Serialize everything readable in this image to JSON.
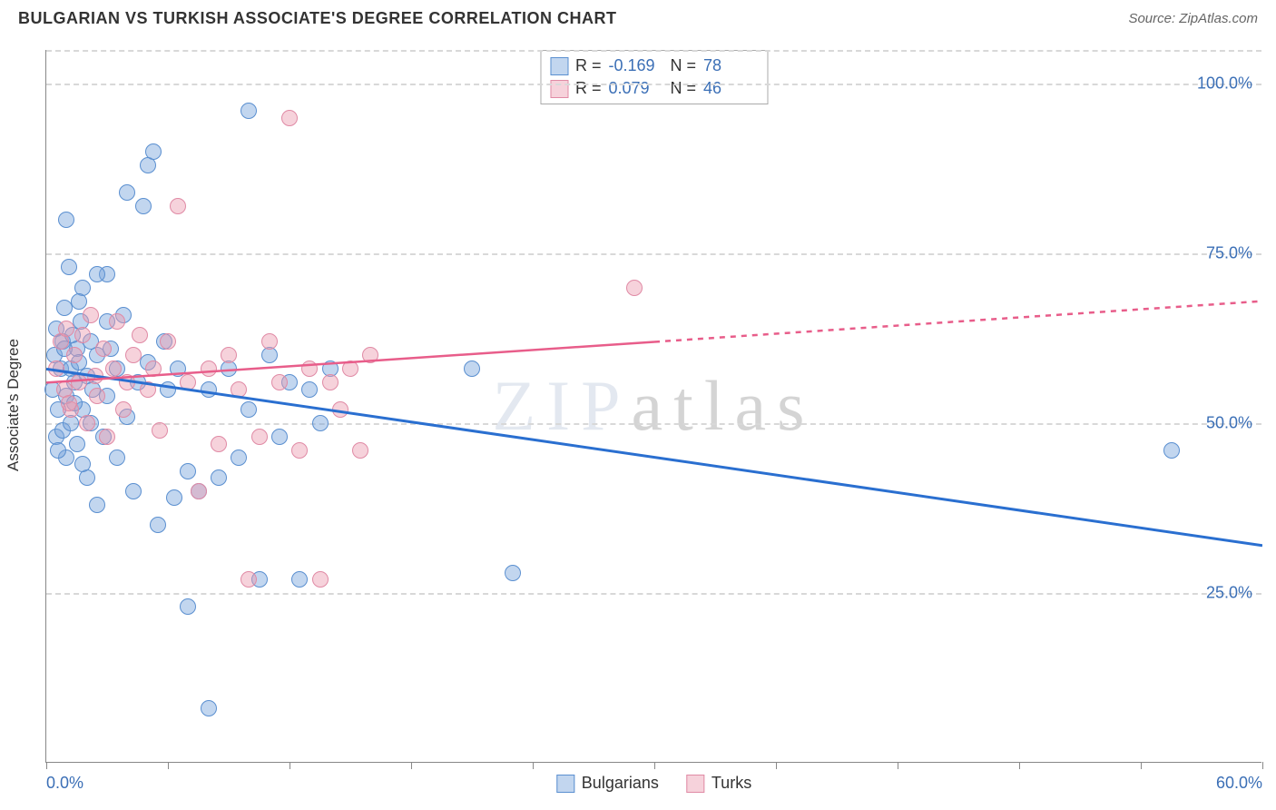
{
  "header": {
    "title": "BULGARIAN VS TURKISH ASSOCIATE'S DEGREE CORRELATION CHART",
    "source": "Source: ZipAtlas.com"
  },
  "watermark": {
    "light": "ZIP",
    "dark": "atlas"
  },
  "chart": {
    "type": "scatter",
    "y_axis_label": "Associate's Degree",
    "xlim": [
      0,
      60
    ],
    "ylim": [
      0,
      105
    ],
    "x_ticks": [
      0,
      6,
      12,
      18,
      24,
      30,
      36,
      42,
      48,
      54,
      60
    ],
    "x_tick_labels": {
      "0": "0.0%",
      "60": "60.0%"
    },
    "y_gridlines": [
      25,
      50,
      75,
      100,
      105
    ],
    "y_tick_labels": {
      "25": "25.0%",
      "50": "50.0%",
      "75": "75.0%",
      "100": "100.0%"
    },
    "background_color": "#ffffff",
    "grid_color": "#d8d8d8",
    "axis_color": "#888888",
    "tick_label_color": "#3b6fb6",
    "point_radius": 9,
    "series": [
      {
        "name": "Bulgarians",
        "fill": "rgba(120,165,220,0.45)",
        "stroke": "#5a8fd0",
        "line_color": "#2a6fd0",
        "line_width": 3,
        "r_value": "-0.169",
        "n_value": "78",
        "trend": {
          "x1": 0,
          "y1": 58,
          "x2": 60,
          "y2": 32,
          "dash_from_x": null
        },
        "points": [
          [
            0.3,
            55
          ],
          [
            0.4,
            60
          ],
          [
            0.5,
            48
          ],
          [
            0.5,
            64
          ],
          [
            0.6,
            52
          ],
          [
            0.7,
            58
          ],
          [
            0.8,
            62
          ],
          [
            0.8,
            49
          ],
          [
            0.9,
            67
          ],
          [
            1.0,
            54
          ],
          [
            1.0,
            45
          ],
          [
            1.1,
            73
          ],
          [
            1.2,
            58
          ],
          [
            1.2,
            50
          ],
          [
            1.3,
            63
          ],
          [
            1.4,
            56
          ],
          [
            1.5,
            61
          ],
          [
            1.5,
            47
          ],
          [
            1.6,
            59
          ],
          [
            1.7,
            65
          ],
          [
            1.8,
            52
          ],
          [
            1.8,
            70
          ],
          [
            2.0,
            57
          ],
          [
            2.0,
            42
          ],
          [
            2.2,
            62
          ],
          [
            2.3,
            55
          ],
          [
            2.5,
            38
          ],
          [
            2.5,
            60
          ],
          [
            2.8,
            48
          ],
          [
            3.0,
            72
          ],
          [
            3.0,
            54
          ],
          [
            3.2,
            61
          ],
          [
            3.5,
            58
          ],
          [
            3.5,
            45
          ],
          [
            3.8,
            66
          ],
          [
            4.0,
            84
          ],
          [
            4.0,
            51
          ],
          [
            4.3,
            40
          ],
          [
            4.5,
            56
          ],
          [
            4.8,
            82
          ],
          [
            5.0,
            88
          ],
          [
            5.0,
            59
          ],
          [
            5.3,
            90
          ],
          [
            5.5,
            35
          ],
          [
            5.8,
            62
          ],
          [
            6.0,
            55
          ],
          [
            6.3,
            39
          ],
          [
            6.5,
            58
          ],
          [
            7.0,
            43
          ],
          [
            7.0,
            23
          ],
          [
            7.5,
            40
          ],
          [
            8.0,
            55
          ],
          [
            8.0,
            8
          ],
          [
            8.5,
            42
          ],
          [
            9.0,
            58
          ],
          [
            9.5,
            45
          ],
          [
            10.0,
            96
          ],
          [
            10.0,
            52
          ],
          [
            10.5,
            27
          ],
          [
            11.0,
            60
          ],
          [
            11.5,
            48
          ],
          [
            12.0,
            56
          ],
          [
            12.5,
            27
          ],
          [
            13.0,
            55
          ],
          [
            13.5,
            50
          ],
          [
            14.0,
            58
          ],
          [
            21.0,
            58
          ],
          [
            23.0,
            28
          ],
          [
            55.5,
            46
          ],
          [
            1.0,
            80
          ],
          [
            2.5,
            72
          ],
          [
            3.0,
            65
          ],
          [
            1.4,
            53
          ],
          [
            0.6,
            46
          ],
          [
            1.8,
            44
          ],
          [
            2.2,
            50
          ],
          [
            0.9,
            61
          ],
          [
            1.6,
            68
          ]
        ]
      },
      {
        "name": "Turks",
        "fill": "rgba(235,155,175,0.45)",
        "stroke": "#e08aa5",
        "line_color": "#e85d8a",
        "line_width": 2.5,
        "r_value": "0.079",
        "n_value": "46",
        "trend": {
          "x1": 0,
          "y1": 56,
          "x2": 60,
          "y2": 68,
          "dash_from_x": 30
        },
        "points": [
          [
            0.5,
            58
          ],
          [
            0.7,
            62
          ],
          [
            0.9,
            55
          ],
          [
            1.0,
            64
          ],
          [
            1.2,
            52
          ],
          [
            1.4,
            60
          ],
          [
            1.6,
            56
          ],
          [
            1.8,
            63
          ],
          [
            2.0,
            50
          ],
          [
            2.2,
            66
          ],
          [
            2.5,
            54
          ],
          [
            2.8,
            61
          ],
          [
            3.0,
            48
          ],
          [
            3.3,
            58
          ],
          [
            3.5,
            65
          ],
          [
            3.8,
            52
          ],
          [
            4.0,
            56
          ],
          [
            4.3,
            60
          ],
          [
            4.6,
            63
          ],
          [
            5.0,
            55
          ],
          [
            5.3,
            58
          ],
          [
            5.6,
            49
          ],
          [
            6.0,
            62
          ],
          [
            6.5,
            82
          ],
          [
            7.0,
            56
          ],
          [
            7.5,
            40
          ],
          [
            8.0,
            58
          ],
          [
            8.5,
            47
          ],
          [
            9.0,
            60
          ],
          [
            9.5,
            55
          ],
          [
            10.0,
            27
          ],
          [
            10.5,
            48
          ],
          [
            11.0,
            62
          ],
          [
            11.5,
            56
          ],
          [
            12.0,
            95
          ],
          [
            12.5,
            46
          ],
          [
            13.0,
            58
          ],
          [
            13.5,
            27
          ],
          [
            14.0,
            56
          ],
          [
            14.5,
            52
          ],
          [
            15.0,
            58
          ],
          [
            15.5,
            46
          ],
          [
            16.0,
            60
          ],
          [
            29.0,
            70
          ],
          [
            1.1,
            53
          ],
          [
            2.4,
            57
          ]
        ]
      }
    ]
  },
  "stats_legend": {
    "r_label": "R =",
    "n_label": "N ="
  },
  "bottom_legend": {
    "series1": "Bulgarians",
    "series2": "Turks"
  }
}
